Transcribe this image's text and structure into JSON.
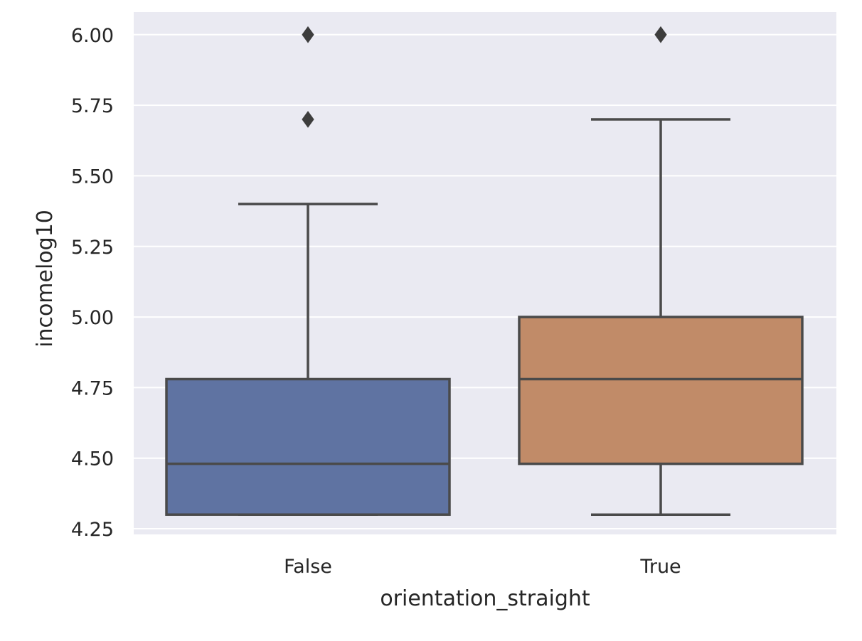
{
  "chart_data": {
    "type": "box",
    "xlabel": "orientation_straight",
    "ylabel": "incomelog10",
    "ylim": [
      4.23,
      6.08
    ],
    "yticks": [
      4.25,
      4.5,
      4.75,
      5.0,
      5.25,
      5.5,
      5.75,
      6.0
    ],
    "ytick_labels": [
      "4.25",
      "4.50",
      "4.75",
      "5.00",
      "5.25",
      "5.50",
      "5.75",
      "6.00"
    ],
    "grid": true,
    "categories": [
      "False",
      "True"
    ],
    "boxes": [
      {
        "category": "False",
        "whisker_low": 4.3,
        "q1": 4.3,
        "median": 4.48,
        "q3": 4.78,
        "whisker_high": 5.4,
        "outliers": [
          5.7,
          6.0
        ],
        "color": "#5f73a2"
      },
      {
        "category": "True",
        "whisker_low": 4.3,
        "q1": 4.48,
        "median": 4.78,
        "q3": 5.0,
        "whisker_high": 5.7,
        "outliers": [
          6.0
        ],
        "color": "#c18b68"
      }
    ],
    "background_color": "#eaeaf2",
    "line_color": "#4a4a4a"
  }
}
